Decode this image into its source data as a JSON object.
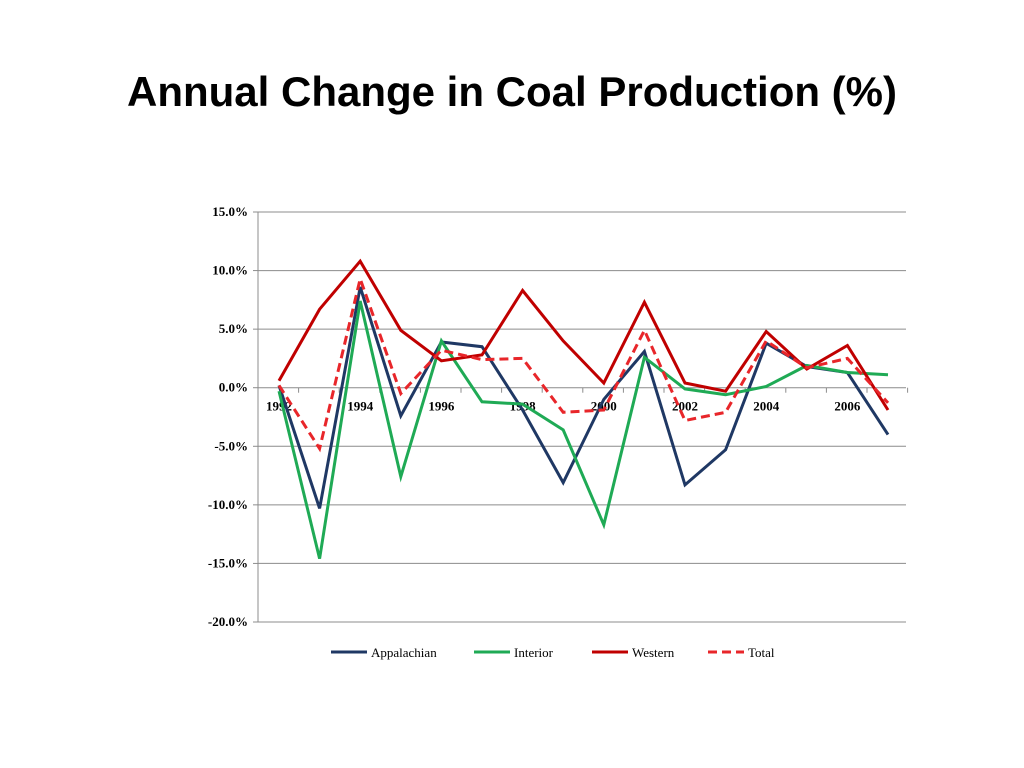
{
  "slide": {
    "title": "Annual Change in Coal Production (%)"
  },
  "chart_data": {
    "type": "line",
    "title": "",
    "xlabel": "",
    "ylabel": "",
    "x": [
      1992,
      1993,
      1994,
      1995,
      1996,
      1997,
      1998,
      1999,
      2000,
      2001,
      2002,
      2003,
      2004,
      2005,
      2006,
      2007
    ],
    "x_tick_labels": [
      "1992",
      "1994",
      "1996",
      "1998",
      "2000",
      "2002",
      "2004",
      "2006"
    ],
    "y_tick_labels": [
      "15.0%",
      "10.0%",
      "5.0%",
      "0.0%",
      "-5.0%",
      "-10.0%",
      "-15.0%",
      "-20.0%"
    ],
    "y_ticks": [
      15,
      10,
      5,
      0,
      -5,
      -10,
      -15,
      -20
    ],
    "ylim": [
      -20,
      15
    ],
    "y_unit": "%",
    "grid": true,
    "legend_position": "bottom",
    "series": [
      {
        "name": "Appalachian",
        "color": "#1f3864",
        "dash": false,
        "values": [
          0.2,
          -10.3,
          8.6,
          -2.4,
          3.9,
          3.5,
          -1.9,
          -8.1,
          -1.0,
          3.1,
          -8.3,
          -5.3,
          3.8,
          1.8,
          1.3,
          -4.0
        ]
      },
      {
        "name": "Interior",
        "color": "#1faa55",
        "dash": false,
        "values": [
          -0.3,
          -14.6,
          7.4,
          -7.6,
          4.0,
          -1.2,
          -1.4,
          -3.6,
          -11.7,
          2.6,
          -0.1,
          -0.6,
          0.1,
          1.9,
          1.3,
          1.1
        ]
      },
      {
        "name": "Western",
        "color": "#c00000",
        "dash": false,
        "values": [
          0.6,
          6.7,
          10.8,
          4.9,
          2.3,
          2.8,
          8.3,
          4.0,
          0.4,
          7.3,
          0.4,
          -0.3,
          4.8,
          1.6,
          3.6,
          -1.9
        ]
      },
      {
        "name": "Total",
        "color": "#e8262a",
        "dash": true,
        "values": [
          0.2,
          -5.2,
          9.3,
          -0.5,
          3.2,
          2.4,
          2.5,
          -2.1,
          -1.9,
          4.9,
          -2.8,
          -2.1,
          4.0,
          1.7,
          2.5,
          -1.3
        ]
      }
    ]
  }
}
